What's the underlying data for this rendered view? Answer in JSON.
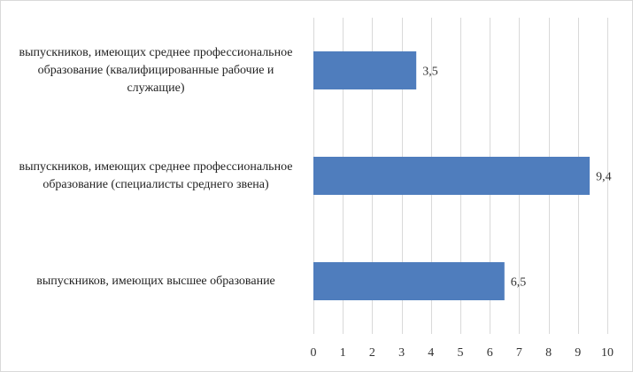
{
  "chart_data": {
    "type": "bar",
    "orientation": "horizontal",
    "title": "",
    "xlabel": "",
    "ylabel": "",
    "categories": [
      "выпускников, имеющих среднее профессиональное образование (квалифицированные рабочие и служащие)",
      "выпускников, имеющих среднее профессиональное образование (специалисты среднего звена)",
      "выпускников, имеющих высшее образование"
    ],
    "values": [
      3.5,
      9.4,
      6.5
    ],
    "value_labels": [
      "3,5",
      "9,4",
      "6,5"
    ],
    "xlim": [
      0,
      10
    ],
    "ticks": [
      "0",
      "1",
      "2",
      "3",
      "4",
      "5",
      "6",
      "7",
      "8",
      "9",
      "10"
    ],
    "grid": true,
    "legend": "none",
    "bar_color": "#4f7dbd",
    "grid_color": "#d9d9d9"
  }
}
